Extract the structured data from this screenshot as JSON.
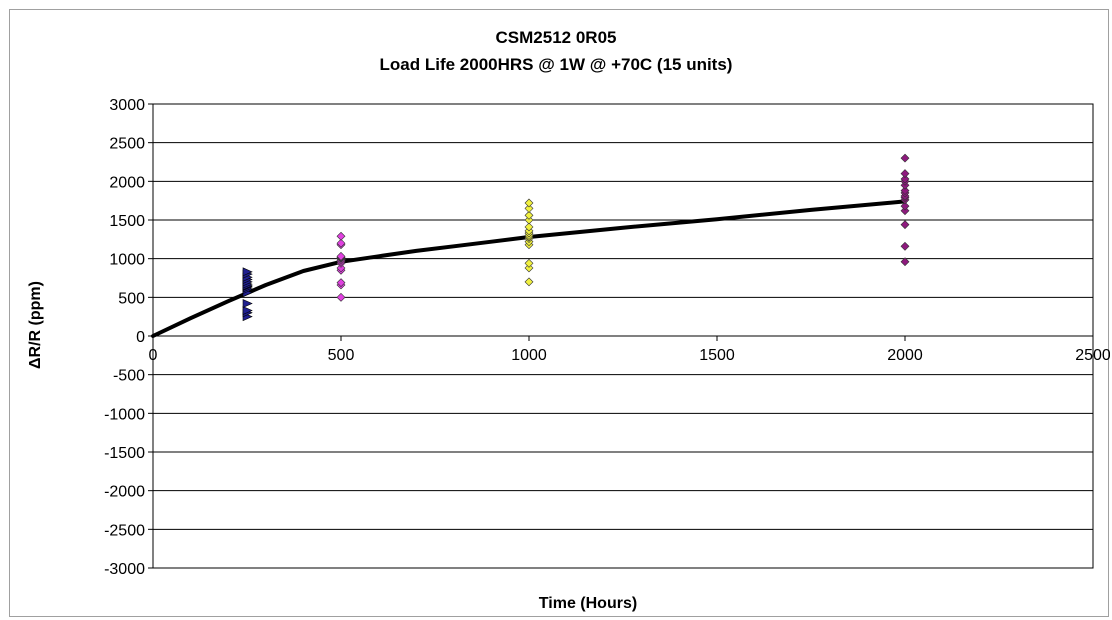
{
  "chart_data": {
    "type": "scatter",
    "title": "CSM2512 0R05",
    "subtitle": "Load Life 2000HRS @ 1W @ +70C (15 units)",
    "xlabel": "Time (Hours)",
    "ylabel": "ΔR/R (ppm)",
    "xlim": [
      0,
      2500
    ],
    "ylim": [
      -3000,
      3000
    ],
    "x_ticks": [
      0,
      500,
      1000,
      1500,
      2000,
      2500
    ],
    "y_ticks": [
      3000,
      2500,
      2000,
      1500,
      1000,
      500,
      0,
      -500,
      -1000,
      -1500,
      -2000,
      -2500,
      -3000
    ],
    "grid": "horizontal",
    "legend": "none",
    "series": [
      {
        "x": 250,
        "marker": "triangle-right",
        "color": "#1f1f8f",
        "values": [
          250,
          300,
          330,
          420,
          560,
          600,
          620,
          640,
          650,
          670,
          700,
          730,
          760,
          800,
          830
        ]
      },
      {
        "x": 500,
        "marker": "diamond",
        "color": "#e040e0",
        "values": [
          500,
          660,
          690,
          850,
          880,
          940,
          960,
          980,
          1000,
          1010,
          1020,
          1030,
          1180,
          1200,
          1290
        ]
      },
      {
        "x": 1000,
        "marker": "diamond",
        "color": "#f0f040",
        "values": [
          700,
          880,
          940,
          1180,
          1220,
          1260,
          1280,
          1300,
          1330,
          1360,
          1410,
          1500,
          1560,
          1650,
          1720
        ]
      },
      {
        "x": 2000,
        "marker": "diamond",
        "color": "#8e1a7e",
        "values": [
          960,
          1160,
          1440,
          1620,
          1680,
          1760,
          1790,
          1810,
          1850,
          1880,
          1950,
          2000,
          2030,
          2100,
          2300
        ]
      }
    ],
    "trend": {
      "color": "#000000",
      "points": [
        [
          0,
          0
        ],
        [
          100,
          230
        ],
        [
          200,
          450
        ],
        [
          300,
          660
        ],
        [
          400,
          840
        ],
        [
          500,
          960
        ],
        [
          600,
          1030
        ],
        [
          700,
          1100
        ],
        [
          800,
          1160
        ],
        [
          900,
          1220
        ],
        [
          1000,
          1280
        ],
        [
          1250,
          1400
        ],
        [
          1500,
          1510
        ],
        [
          1750,
          1630
        ],
        [
          2000,
          1740
        ]
      ]
    }
  }
}
